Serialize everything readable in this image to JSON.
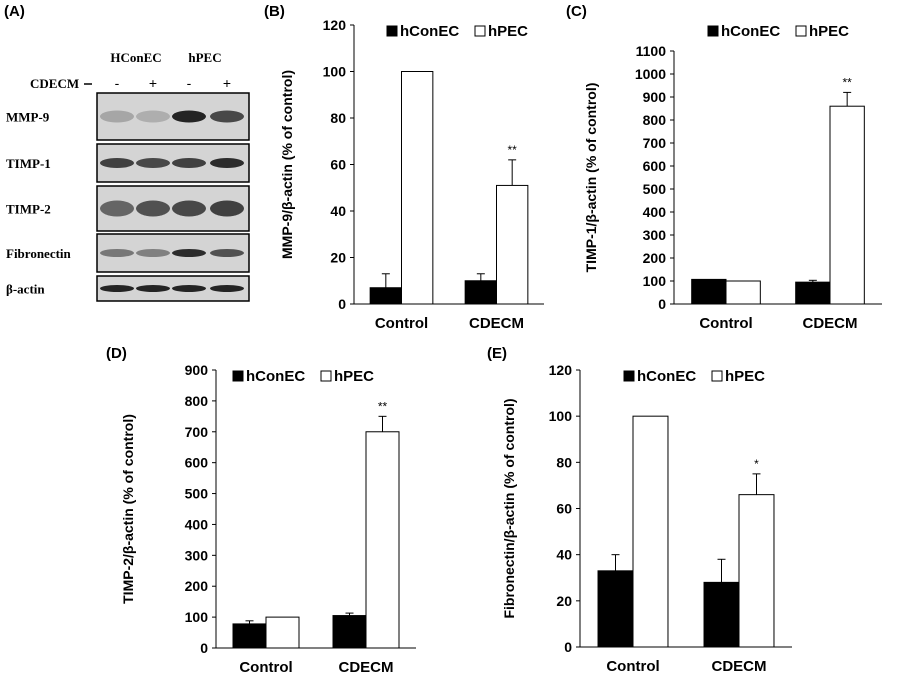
{
  "panel_labels": [
    "(A)",
    "(B)",
    "(C)",
    "(D)",
    "(E)"
  ],
  "blot": {
    "group_labels": [
      "HConEC",
      "hPEC"
    ],
    "treatment_label": "CDECM",
    "lane_signs": [
      "-",
      "+",
      "-",
      "+"
    ],
    "rows": [
      "MMP-9",
      "TIMP-1",
      "TIMP-2",
      "Fibronectin",
      "β-actin"
    ]
  },
  "legend": [
    "hConEC",
    "hPEC"
  ],
  "colors": {
    "hConEC": "#000000",
    "hPEC": "#ffffff",
    "axis": "#000000",
    "gel_bg": "#d4d4d4",
    "band": "#1a1a1a"
  },
  "chart_data": [
    {
      "type": "bar",
      "panel": "(B)",
      "ylabel": "MMP-9/β-actin (% of control)",
      "categories": [
        "Control",
        "CDECM"
      ],
      "ylim": [
        0,
        120
      ],
      "yticks": [
        0,
        20,
        40,
        60,
        80,
        100,
        120
      ],
      "series": [
        {
          "name": "hConEC",
          "values": [
            7,
            10
          ],
          "errors": [
            6,
            3
          ],
          "sig": [
            "",
            ""
          ]
        },
        {
          "name": "hPEC",
          "values": [
            100,
            51
          ],
          "errors": [
            0,
            11
          ],
          "sig": [
            "",
            "**"
          ]
        }
      ],
      "legend_position": "top"
    },
    {
      "type": "bar",
      "panel": "(C)",
      "ylabel": "TIMP-1/β-actin (% of control)",
      "categories": [
        "Control",
        "CDECM"
      ],
      "ylim": [
        0,
        1100
      ],
      "yticks": [
        0,
        100,
        200,
        300,
        400,
        500,
        600,
        700,
        800,
        900,
        1000,
        1100
      ],
      "series": [
        {
          "name": "hConEC",
          "values": [
            107,
            95
          ],
          "errors": [
            0,
            8
          ],
          "sig": [
            "",
            ""
          ]
        },
        {
          "name": "hPEC",
          "values": [
            100,
            860
          ],
          "errors": [
            0,
            60
          ],
          "sig": [
            "",
            "**"
          ]
        }
      ],
      "legend_position": "top"
    },
    {
      "type": "bar",
      "panel": "(D)",
      "ylabel": "TIMP-2/β-actin (% of control)",
      "categories": [
        "Control",
        "CDECM"
      ],
      "ylim": [
        0,
        900
      ],
      "yticks": [
        0,
        100,
        200,
        300,
        400,
        500,
        600,
        700,
        800,
        900
      ],
      "series": [
        {
          "name": "hConEC",
          "values": [
            78,
            105
          ],
          "errors": [
            10,
            8
          ],
          "sig": [
            "",
            ""
          ]
        },
        {
          "name": "hPEC",
          "values": [
            100,
            700
          ],
          "errors": [
            0,
            50
          ],
          "sig": [
            "",
            "**"
          ]
        }
      ],
      "legend_position": "top"
    },
    {
      "type": "bar",
      "panel": "(E)",
      "ylabel": "Fibronectin/β-actin (% of control)",
      "categories": [
        "Control",
        "CDECM"
      ],
      "ylim": [
        0,
        120
      ],
      "yticks": [
        0,
        20,
        40,
        60,
        80,
        100,
        120
      ],
      "series": [
        {
          "name": "hConEC",
          "values": [
            33,
            28
          ],
          "errors": [
            7,
            10
          ],
          "sig": [
            "",
            ""
          ]
        },
        {
          "name": "hPEC",
          "values": [
            100,
            66
          ],
          "errors": [
            0,
            9
          ],
          "sig": [
            "",
            "*"
          ]
        }
      ],
      "legend_position": "top"
    }
  ]
}
